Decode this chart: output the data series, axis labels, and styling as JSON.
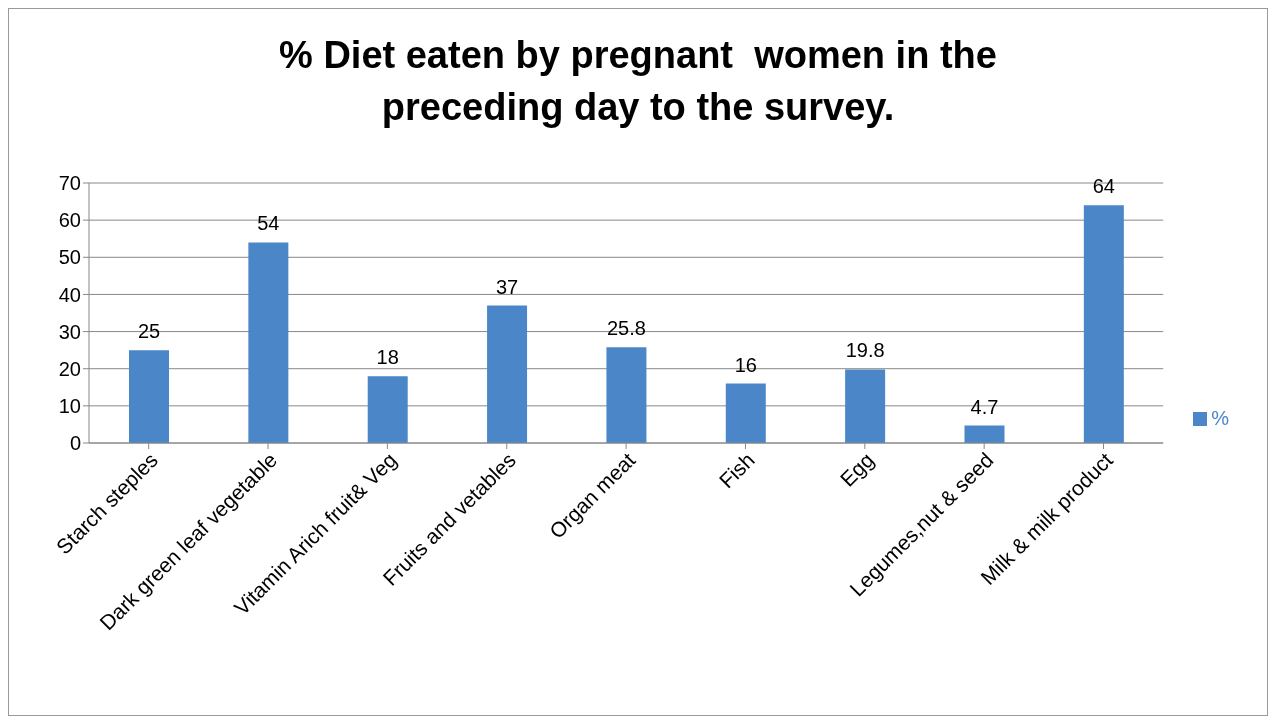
{
  "chart_data": {
    "type": "bar",
    "title": "% Diet eaten by pregnant  women in the preceding day to the survey.",
    "categories": [
      "Starch steples",
      "Dark green leaf vegetable",
      "Vitamin Arich fruit& Veg",
      "Fruits and vetables",
      "Organ meat",
      "Fish",
      "Egg",
      "Legumes,nut & seed",
      "Milk & milk product"
    ],
    "series": [
      {
        "name": "%",
        "color": "#4a86c8",
        "values": [
          25,
          54,
          18,
          37,
          25.8,
          16,
          19.8,
          4.7,
          64
        ]
      }
    ],
    "ylim": [
      0,
      70
    ],
    "yticks": [
      0,
      10,
      20,
      30,
      40,
      50,
      60,
      70
    ],
    "grid": "y",
    "legend": "right",
    "data_labels": true
  }
}
